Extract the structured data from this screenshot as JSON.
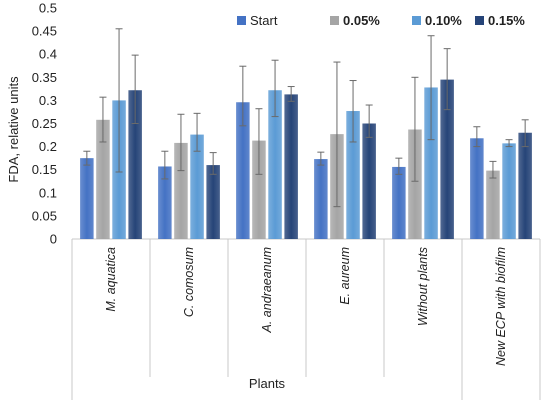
{
  "chart_data": {
    "type": "bar",
    "title": "",
    "ylabel": "FDA, relative units",
    "xlabel": "Plants",
    "ylim": [
      0,
      0.5
    ],
    "yticks": [
      0,
      0.05,
      0.1,
      0.15,
      0.2,
      0.25,
      0.3,
      0.35,
      0.4,
      0.45,
      0.5
    ],
    "ytick_labels": [
      "0",
      "0.05",
      "0.1",
      "0.15",
      "0.2",
      "0.25",
      "0.3",
      "0.35",
      "0.4",
      "0.45",
      "0.5"
    ],
    "grid": false,
    "legend_position": "top",
    "categories": [
      "M. aquatica",
      "C. comosum",
      "A. andraeanum",
      "E. aureum",
      "Without plants",
      "New ECP with biofilm"
    ],
    "category_groups": [
      {
        "label": "Plants",
        "members": [
          "M. aquatica",
          "C. comosum",
          "A. andraeanum",
          "E. aureum",
          "Without plants"
        ]
      },
      {
        "label": "",
        "members": [
          "New ECP with biofilm"
        ]
      }
    ],
    "series": [
      {
        "name": "Start",
        "legend_bold": false,
        "color": "#4472c4",
        "values": [
          0.175,
          0.157,
          0.296,
          0.173,
          0.156,
          0.218
        ],
        "err_low": [
          0.16,
          0.13,
          0.245,
          0.16,
          0.14,
          0.2
        ],
        "err_high": [
          0.19,
          0.19,
          0.374,
          0.188,
          0.175,
          0.243
        ]
      },
      {
        "name": "0.05%",
        "legend_bold": true,
        "color": "#a5a5a5",
        "values": [
          0.258,
          0.208,
          0.213,
          0.227,
          0.237,
          0.148
        ],
        "err_low": [
          0.21,
          0.148,
          0.14,
          0.07,
          0.125,
          0.132
        ],
        "err_high": [
          0.307,
          0.27,
          0.282,
          0.383,
          0.35,
          0.168
        ]
      },
      {
        "name": "0.10%",
        "legend_bold": true,
        "color": "#5b9bd5",
        "values": [
          0.3,
          0.226,
          0.322,
          0.277,
          0.328,
          0.207
        ],
        "err_low": [
          0.145,
          0.19,
          0.265,
          0.21,
          0.215,
          0.2
        ],
        "err_high": [
          0.455,
          0.272,
          0.387,
          0.343,
          0.44,
          0.215
        ]
      },
      {
        "name": "0.15%",
        "legend_bold": true,
        "color": "#264478",
        "values": [
          0.322,
          0.16,
          0.313,
          0.25,
          0.345,
          0.23
        ],
        "err_low": [
          0.25,
          0.14,
          0.298,
          0.22,
          0.28,
          0.2
        ],
        "err_high": [
          0.398,
          0.187,
          0.33,
          0.29,
          0.412,
          0.258
        ]
      }
    ]
  }
}
